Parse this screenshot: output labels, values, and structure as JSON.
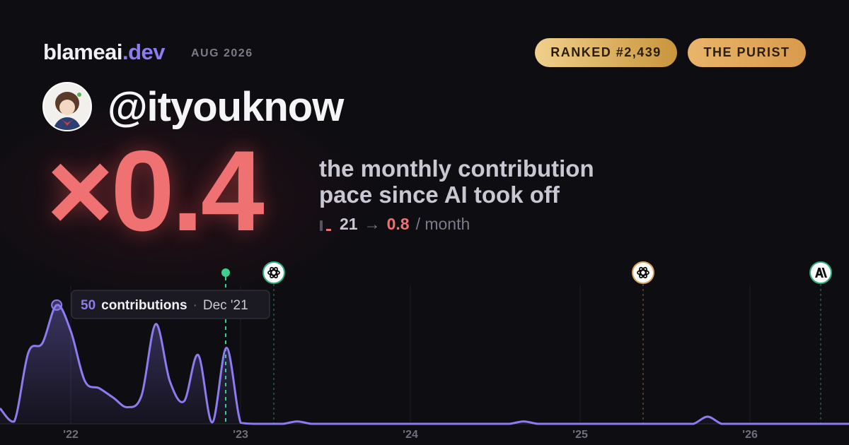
{
  "header": {
    "brand": "blameai",
    "brand_suffix": ".dev",
    "date": "AUG 2026",
    "badges": [
      "RANKED #2,439",
      "THE PURIST"
    ],
    "username": "@ityouknow"
  },
  "summary": {
    "multiplier": "×0.4",
    "description": [
      "the monthly contribution",
      "pace since AI took off"
    ],
    "before": "21",
    "arrow": "→",
    "after": "0.8",
    "unit": "/ month"
  },
  "chart_data": {
    "type": "line",
    "color": "#8b7cf0",
    "x": [
      2021.583,
      2021.667,
      2021.75,
      2021.833,
      2021.917,
      2022,
      2022.083,
      2022.167,
      2022.25,
      2022.333,
      2022.417,
      2022.5,
      2022.583,
      2022.667,
      2022.75,
      2022.833,
      2022.917,
      2023,
      2023.083,
      2023.167,
      2023.25,
      2023.333,
      2023.417,
      2023.5,
      2023.583,
      2023.667,
      2023.75,
      2023.833,
      2023.917,
      2024,
      2024.083,
      2024.167,
      2024.25,
      2024.333,
      2024.417,
      2024.5,
      2024.583,
      2024.667,
      2024.75,
      2024.833,
      2024.917,
      2025,
      2025.083,
      2025.167,
      2025.25,
      2025.333,
      2025.417,
      2025.5,
      2025.583,
      2025.667,
      2025.75,
      2025.833,
      2025.917,
      2026,
      2026.083,
      2026.167,
      2026.25,
      2026.333,
      2026.417,
      2026.5,
      2026.583
    ],
    "values": [
      6.5,
      1,
      30,
      34,
      50,
      39,
      18,
      15,
      11,
      7,
      12,
      42,
      18,
      9.5,
      29,
      0.6,
      32,
      0.5,
      0,
      0,
      0,
      1,
      0,
      0,
      0,
      0,
      0,
      0,
      0,
      0,
      0,
      0,
      0,
      0,
      0,
      0,
      0,
      1,
      0,
      0,
      0,
      0,
      0,
      0,
      0,
      0,
      0,
      0,
      0,
      0,
      3,
      0,
      0,
      0,
      0,
      0,
      0,
      0,
      0,
      0,
      0
    ],
    "xlim": [
      2021.583,
      2026.583
    ],
    "ylim": [
      0,
      58
    ],
    "xticks": [
      {
        "value": 2022,
        "label": "'22"
      },
      {
        "value": 2023,
        "label": "'23"
      },
      {
        "value": 2024,
        "label": "'24"
      },
      {
        "value": 2025,
        "label": "'25"
      },
      {
        "value": 2026,
        "label": "'26"
      }
    ],
    "grid": true,
    "tooltip": {
      "index": 4,
      "unit": "contributions",
      "separator": "·",
      "date": "Dec '21"
    }
  }
}
